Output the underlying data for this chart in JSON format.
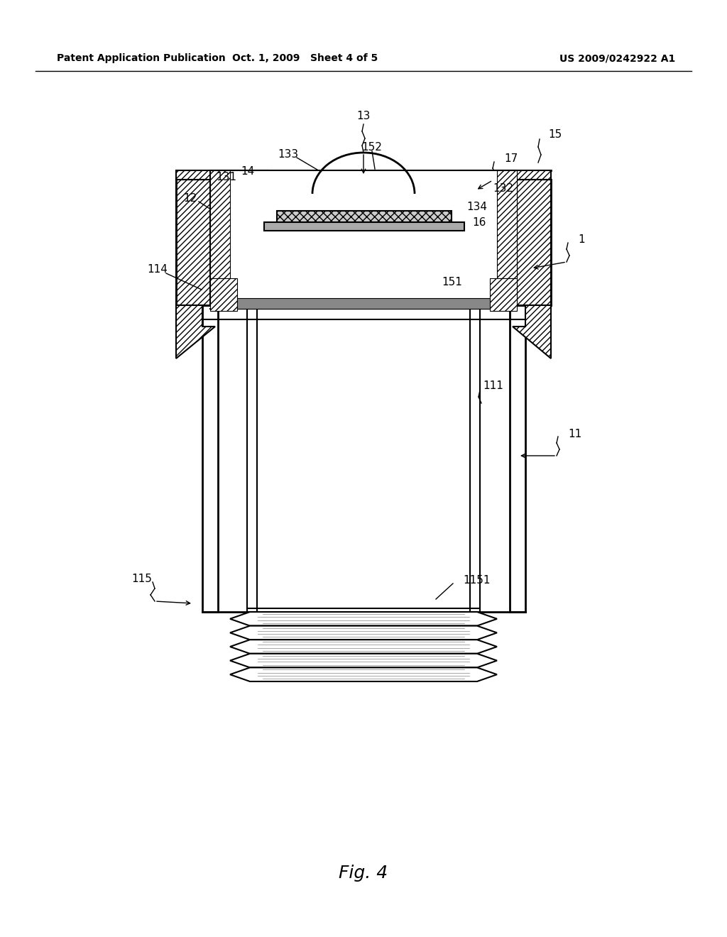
{
  "bg_color": "#ffffff",
  "line_color": "#000000",
  "fig_label": "Fig. 4",
  "header_left": "Patent Application Publication",
  "header_mid": "Oct. 1, 2009   Sheet 4 of 5",
  "header_right": "US 2009/0242922 A1"
}
